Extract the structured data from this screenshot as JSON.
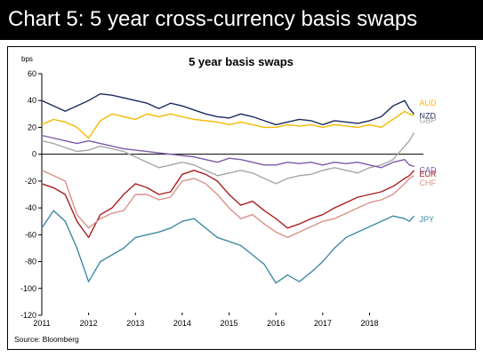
{
  "header": {
    "title": "Chart 5: 5 year cross-currency basis swaps"
  },
  "chart_data": {
    "type": "line",
    "title": "5 year basis swaps",
    "ylabel": "bps",
    "xlabel": "",
    "ylim": [
      -120,
      60
    ],
    "xlim": [
      2011.0,
      2019.15
    ],
    "yticks": [
      60,
      40,
      20,
      0,
      -20,
      -40,
      -60,
      -80,
      -100,
      -120
    ],
    "xticks": [
      "2011",
      "2012",
      "2013",
      "2014",
      "2015",
      "2016",
      "2017",
      "2018"
    ],
    "grid": false,
    "source": "Source: Bloomberg",
    "series": [
      {
        "name": "NZD",
        "color": "#1a2a5c",
        "x": [
          2011.0,
          2011.25,
          2011.5,
          2011.75,
          2012.0,
          2012.25,
          2012.5,
          2012.75,
          2013.0,
          2013.25,
          2013.5,
          2013.75,
          2014.0,
          2014.25,
          2014.5,
          2014.75,
          2015.0,
          2015.25,
          2015.5,
          2015.75,
          2016.0,
          2016.25,
          2016.5,
          2016.75,
          2017.0,
          2017.25,
          2017.5,
          2017.75,
          2018.0,
          2018.25,
          2018.5,
          2018.75,
          2018.85,
          2018.95
        ],
        "values": [
          40,
          36,
          32,
          36,
          40,
          45,
          44,
          42,
          40,
          38,
          34,
          38,
          36,
          33,
          30,
          28,
          27,
          30,
          28,
          25,
          22,
          24,
          26,
          25,
          22,
          25,
          24,
          23,
          25,
          28,
          36,
          40,
          34,
          30
        ]
      },
      {
        "name": "AUD",
        "color": "#f5b800",
        "x": [
          2011.0,
          2011.25,
          2011.5,
          2011.75,
          2012.0,
          2012.25,
          2012.5,
          2012.75,
          2013.0,
          2013.25,
          2013.5,
          2013.75,
          2014.0,
          2014.25,
          2014.5,
          2014.75,
          2015.0,
          2015.25,
          2015.5,
          2015.75,
          2016.0,
          2016.25,
          2016.5,
          2016.75,
          2017.0,
          2017.25,
          2017.5,
          2017.75,
          2018.0,
          2018.25,
          2018.5,
          2018.75,
          2018.85,
          2018.95
        ],
        "values": [
          22,
          26,
          24,
          20,
          12,
          25,
          30,
          28,
          26,
          30,
          28,
          30,
          28,
          26,
          25,
          24,
          22,
          24,
          22,
          20,
          20,
          22,
          21,
          22,
          20,
          22,
          21,
          20,
          22,
          20,
          26,
          32,
          30,
          29
        ]
      },
      {
        "name": "GBP",
        "color": "#a6a6a6",
        "x": [
          2011.0,
          2011.25,
          2011.5,
          2011.75,
          2012.0,
          2012.25,
          2012.5,
          2012.75,
          2013.0,
          2013.25,
          2013.5,
          2013.75,
          2014.0,
          2014.25,
          2014.5,
          2014.75,
          2015.0,
          2015.25,
          2015.5,
          2015.75,
          2016.0,
          2016.25,
          2016.5,
          2016.75,
          2017.0,
          2017.25,
          2017.5,
          2017.75,
          2018.0,
          2018.25,
          2018.5,
          2018.75,
          2018.85,
          2018.95
        ],
        "values": [
          10,
          8,
          5,
          2,
          3,
          6,
          4,
          2,
          -2,
          -6,
          -10,
          -8,
          -6,
          -8,
          -12,
          -16,
          -14,
          -12,
          -14,
          -18,
          -22,
          -18,
          -16,
          -15,
          -12,
          -10,
          -12,
          -14,
          -10,
          -8,
          -4,
          6,
          10,
          16
        ]
      },
      {
        "name": "CAD",
        "color": "#7b5ba6",
        "x": [
          2011.0,
          2011.25,
          2011.5,
          2011.75,
          2012.0,
          2012.25,
          2012.5,
          2012.75,
          2013.0,
          2013.25,
          2013.5,
          2013.75,
          2014.0,
          2014.25,
          2014.5,
          2014.75,
          2015.0,
          2015.25,
          2015.5,
          2015.75,
          2016.0,
          2016.25,
          2016.5,
          2016.75,
          2017.0,
          2017.25,
          2017.5,
          2017.75,
          2018.0,
          2018.25,
          2018.5,
          2018.75,
          2018.85,
          2018.95
        ],
        "values": [
          14,
          12,
          10,
          8,
          10,
          8,
          6,
          4,
          3,
          2,
          1,
          0,
          -1,
          -2,
          -4,
          -6,
          -3,
          -4,
          -6,
          -8,
          -8,
          -6,
          -7,
          -6,
          -8,
          -6,
          -7,
          -6,
          -8,
          -10,
          -6,
          -4,
          -8,
          -9
        ]
      },
      {
        "name": "EUR",
        "color": "#a52020",
        "x": [
          2011.0,
          2011.25,
          2011.5,
          2011.75,
          2012.0,
          2012.25,
          2012.5,
          2012.75,
          2013.0,
          2013.25,
          2013.5,
          2013.75,
          2014.0,
          2014.25,
          2014.5,
          2014.75,
          2015.0,
          2015.25,
          2015.5,
          2015.75,
          2016.0,
          2016.25,
          2016.5,
          2016.75,
          2017.0,
          2017.25,
          2017.5,
          2017.75,
          2018.0,
          2018.25,
          2018.5,
          2018.75,
          2018.85,
          2018.95
        ],
        "values": [
          -22,
          -25,
          -30,
          -50,
          -62,
          -45,
          -40,
          -30,
          -22,
          -25,
          -30,
          -28,
          -15,
          -12,
          -15,
          -20,
          -30,
          -38,
          -35,
          -42,
          -48,
          -55,
          -52,
          -48,
          -45,
          -40,
          -36,
          -32,
          -30,
          -28,
          -24,
          -18,
          -16,
          -12
        ]
      },
      {
        "name": "CHF",
        "color": "#d9908a",
        "x": [
          2011.0,
          2011.25,
          2011.5,
          2011.75,
          2012.0,
          2012.25,
          2012.5,
          2012.75,
          2013.0,
          2013.25,
          2013.5,
          2013.75,
          2014.0,
          2014.25,
          2014.5,
          2014.75,
          2015.0,
          2015.25,
          2015.5,
          2015.75,
          2016.0,
          2016.25,
          2016.5,
          2016.75,
          2017.0,
          2017.25,
          2017.5,
          2017.75,
          2018.0,
          2018.25,
          2018.5,
          2018.75,
          2018.85,
          2018.95
        ],
        "values": [
          -12,
          -16,
          -20,
          -45,
          -55,
          -48,
          -44,
          -42,
          -30,
          -30,
          -34,
          -32,
          -20,
          -18,
          -22,
          -30,
          -40,
          -48,
          -45,
          -52,
          -58,
          -62,
          -58,
          -54,
          -50,
          -48,
          -44,
          -40,
          -36,
          -34,
          -30,
          -22,
          -18,
          -16
        ]
      },
      {
        "name": "JPY",
        "color": "#3f8aa6",
        "x": [
          2011.0,
          2011.25,
          2011.5,
          2011.75,
          2012.0,
          2012.25,
          2012.5,
          2012.75,
          2013.0,
          2013.25,
          2013.5,
          2013.75,
          2014.0,
          2014.25,
          2014.5,
          2014.75,
          2015.0,
          2015.25,
          2015.5,
          2015.75,
          2016.0,
          2016.25,
          2016.5,
          2016.75,
          2017.0,
          2017.25,
          2017.5,
          2017.75,
          2018.0,
          2018.25,
          2018.5,
          2018.75,
          2018.85,
          2018.95
        ],
        "values": [
          -55,
          -42,
          -50,
          -70,
          -95,
          -80,
          -75,
          -70,
          -62,
          -60,
          -58,
          -55,
          -50,
          -48,
          -55,
          -62,
          -65,
          -68,
          -75,
          -82,
          -96,
          -90,
          -95,
          -88,
          -80,
          -70,
          -62,
          -58,
          -54,
          -50,
          -46,
          -48,
          -50,
          -46
        ]
      }
    ]
  }
}
